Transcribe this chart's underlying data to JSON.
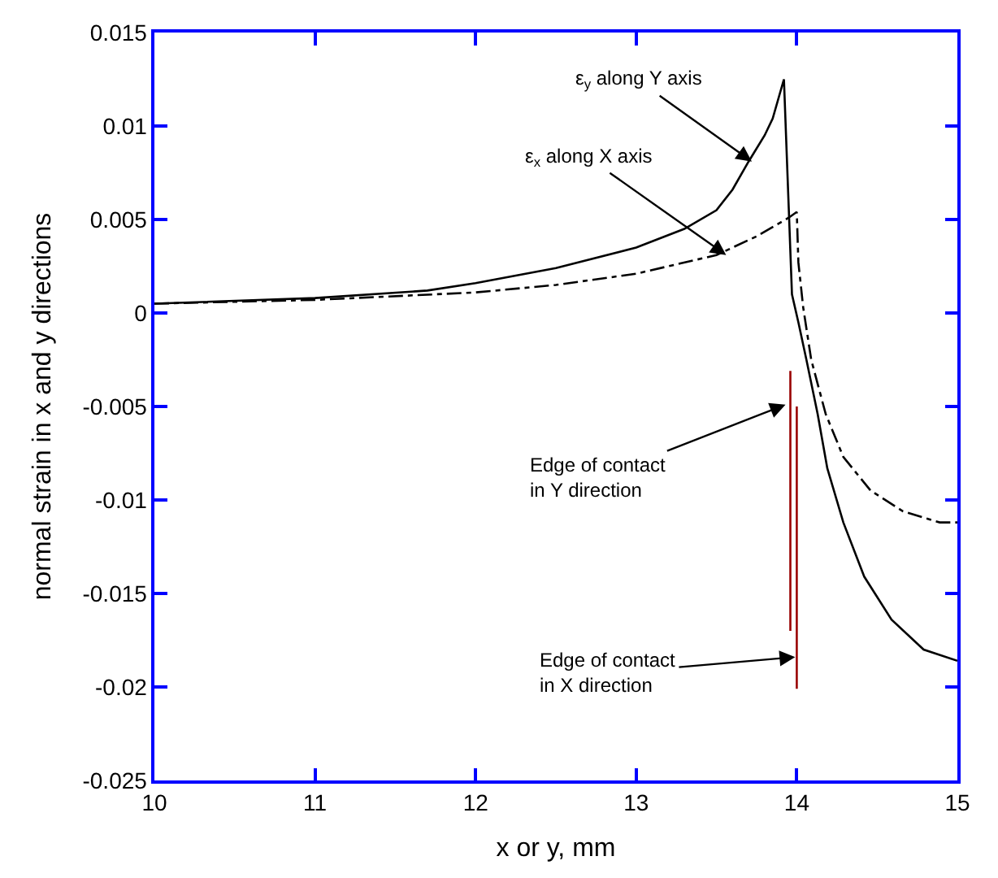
{
  "chart_data": {
    "type": "line",
    "xlabel": "x or y, mm",
    "ylabel": "normal strain in x and y directions",
    "xlim": [
      10,
      15
    ],
    "ylim": [
      -0.025,
      0.015
    ],
    "xticks": [
      10,
      11,
      12,
      13,
      14,
      15
    ],
    "yticks": [
      -0.025,
      -0.02,
      -0.015,
      -0.01,
      -0.005,
      0,
      0.005,
      0.01,
      0.015
    ],
    "legend": false,
    "marker": "none",
    "series": [
      {
        "color": "#000000",
        "line_style": "solid",
        "x": [
          10,
          11,
          11.7,
          12,
          12.5,
          13,
          13.3,
          13.5,
          13.6,
          13.7,
          13.8,
          13.85,
          13.92,
          13.97,
          14.01,
          14.06,
          14.13,
          14.19,
          14.29,
          14.42,
          14.59,
          14.79,
          15
        ],
        "values": [
          0.0005,
          0.0008,
          0.0012,
          0.0016,
          0.0024,
          0.0035,
          0.0045,
          0.0055,
          0.0066,
          0.0081,
          0.0095,
          0.0104,
          0.0125,
          0.001,
          -0.0005,
          -0.0025,
          -0.0054,
          -0.0083,
          -0.0112,
          -0.0141,
          -0.0164,
          -0.018,
          -0.0186
        ]
      },
      {
        "color": "#000000",
        "line_style": "dashed",
        "x": [
          10,
          11,
          12,
          12.5,
          13,
          13.5,
          13.75,
          13.95,
          14.0,
          14.01,
          14.04,
          14.09,
          14.18,
          14.29,
          14.46,
          14.66,
          14.89,
          15
        ],
        "values": [
          0.0005,
          0.0007,
          0.0011,
          0.0015,
          0.0021,
          0.0031,
          0.0041,
          0.0051,
          0.0054,
          0.0027,
          0.0003,
          -0.0025,
          -0.0054,
          -0.0077,
          -0.0095,
          -0.0106,
          -0.0112,
          -0.0112
        ]
      },
      {
        "color": "#990000",
        "line_style": "solid",
        "x": [
          13.96,
          13.96
        ],
        "values": [
          -0.0031,
          -0.017
        ]
      },
      {
        "color": "#990000",
        "line_style": "solid",
        "x": [
          14.0,
          14.0
        ],
        "values": [
          -0.005,
          -0.0201
        ]
      }
    ],
    "annotations": [
      {
        "text": "ε$_{y}$ along Y axis",
        "x": 13.72,
        "y": 0.0081
      },
      {
        "text": "ε$_{x}$ along X axis",
        "x": 13.56,
        "y": 0.0031
      },
      {
        "text": "Edge of contact\nin Y direction",
        "x": 13.93,
        "y": -0.0049
      },
      {
        "text": "Edge of contact\nin X direction",
        "x": 13.99,
        "y": -0.0184
      }
    ]
  }
}
